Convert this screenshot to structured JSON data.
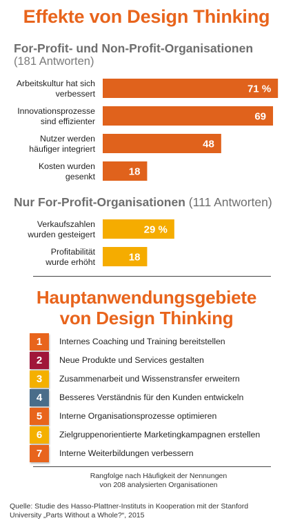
{
  "title": "Effekte von Design Thinking",
  "section1": {
    "heading": "For-Profit- und Non-Profit-Organisationen",
    "subheading": "(181 Antworten)"
  },
  "section2": {
    "heading": "Nur For-Profit-Organisationen",
    "heading_light": "(111 Antworten)"
  },
  "chart_data": [
    {
      "type": "bar",
      "orientation": "horizontal",
      "categories": [
        [
          "Arbeitskultur hat sich",
          "verbessert"
        ],
        [
          "Innovationsprozesse",
          "sind effizienter"
        ],
        [
          "Nutzer werden",
          "häufiger integriert"
        ],
        [
          "Kosten wurden",
          "gesenkt"
        ]
      ],
      "values": [
        71,
        69,
        48,
        18
      ],
      "data_labels": [
        "71 %",
        "69",
        "48",
        "18"
      ],
      "color": "#e0621c",
      "xlim": [
        0,
        100
      ]
    },
    {
      "type": "bar",
      "orientation": "horizontal",
      "categories": [
        [
          "Verkaufszahlen",
          "wurden gesteigert"
        ],
        [
          "Profitabilität",
          "wurde erhöht"
        ]
      ],
      "values": [
        29,
        18
      ],
      "data_labels": [
        "29 %",
        "18"
      ],
      "color": "#f5ac00",
      "xlim": [
        0,
        100
      ]
    }
  ],
  "title2_line1": "Hauptanwendungsgebiete",
  "title2_line2": "von Design Thinking",
  "ranking": [
    {
      "num": "1",
      "label": "Internes Coaching und Training bereitstellen",
      "color": "#e8641c"
    },
    {
      "num": "2",
      "label": "Neue Produkte und Services gestalten",
      "color": "#a0173a"
    },
    {
      "num": "3",
      "label": "Zusammenarbeit und Wissenstransfer erweitern",
      "color": "#f4b000"
    },
    {
      "num": "4",
      "label": "Besseres Verständnis für den Kunden entwickeln",
      "color": "#4a6d8a"
    },
    {
      "num": "5",
      "label": "Interne Organisationsprozesse optimieren",
      "color": "#e8641c"
    },
    {
      "num": "6",
      "label": "Zielgruppenorientierte Marketingkampagnen erstellen",
      "color": "#f4b000"
    },
    {
      "num": "7",
      "label": "Interne Weiterbildungen verbessern",
      "color": "#e8641c"
    }
  ],
  "note_line1": "Rangfolge nach Häufigkeit der Nennungen",
  "note_line2": "von 208 analysierten Organisationen",
  "source_line1": "Quelle: Studie des Hasso-Plattner-Instituts in Kooperation mit der Stanford",
  "source_line2": "University „Parts Without a Whole?“, 2015"
}
